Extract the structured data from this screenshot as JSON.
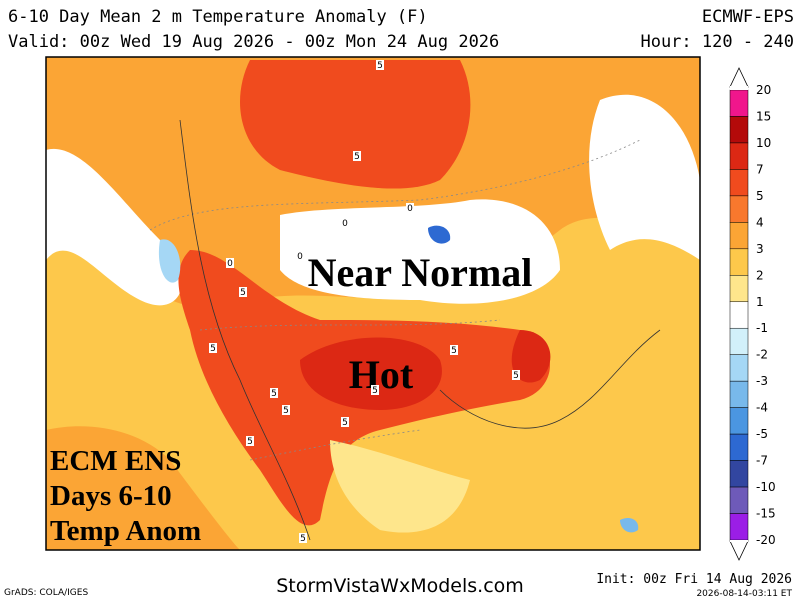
{
  "header": {
    "title": "6-10 Day Mean 2 m Temperature Anomaly (F)",
    "model": "ECMWF-EPS",
    "valid": "Valid: 00z Wed 19 Aug 2026 - 00z Mon 24 Aug 2026",
    "hour": "Hour: 120 - 240"
  },
  "colorbar": {
    "labels": [
      "20",
      "15",
      "10",
      "7",
      "5",
      "4",
      "3",
      "2",
      "1",
      "-1",
      "-2",
      "-3",
      "-4",
      "-5",
      "-7",
      "-10",
      "-15",
      "-20"
    ],
    "colors": [
      "#f0168c",
      "#b40a0a",
      "#dc2814",
      "#f04b1e",
      "#f8782d",
      "#fba535",
      "#fdc84b",
      "#fee68c",
      "#ffffff",
      "#d2f0fa",
      "#a5d7f5",
      "#78b9eb",
      "#4b96e1",
      "#2d69d2",
      "#3246a0",
      "#6e5ab9",
      "#9b1ee6"
    ]
  },
  "map": {
    "annotations": [
      "Near Normal",
      "Hot"
    ],
    "contour_labels": [
      "5",
      "5",
      "5",
      "5",
      "5",
      "5",
      "5",
      "5",
      "5",
      "5",
      "5",
      "5",
      "0",
      "0",
      "0",
      "0"
    ]
  },
  "overlay": {
    "lines": [
      "ECM ENS",
      "Days 6-10",
      "Temp Anom"
    ]
  },
  "footer": {
    "credit": "GrADS: COLA/IGES",
    "site": "StormVistaWxModels.com",
    "init": "Init: 00z Fri 14 Aug 2026",
    "stamp": "2026-08-14-03:11 ET"
  }
}
